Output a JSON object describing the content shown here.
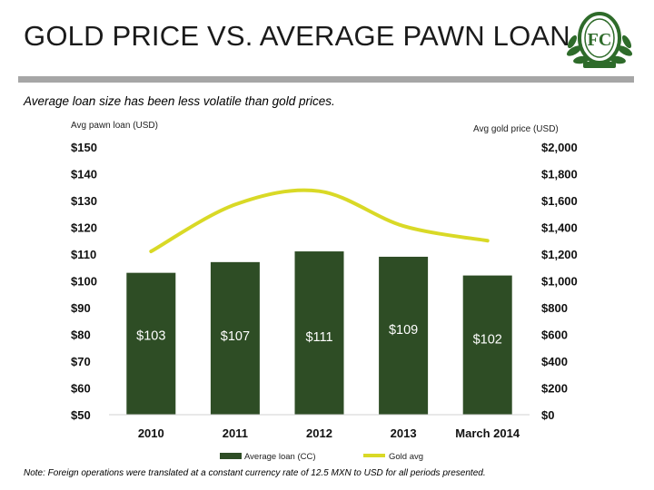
{
  "slide": {
    "title": "GOLD PRICE VS. AVERAGE PAWN LOAN",
    "subtitle": "Average loan size has been less volatile than gold prices.",
    "footnote": "Note: Foreign operations were translated at a constant currency rate of 12.5 MXN to USD for all periods presented.",
    "logo_icon": "fc-crest-logo-icon",
    "logo_letters": "FC"
  },
  "chart_data": {
    "type": "bar",
    "categories": [
      "2010",
      "2011",
      "2012",
      "2013",
      "March 2014"
    ],
    "series": [
      {
        "name": "Average loan (CC)",
        "kind": "bar",
        "axis": "left",
        "values": [
          103,
          107,
          111,
          109,
          102
        ],
        "labels": [
          "$103",
          "$107",
          "$111",
          "$109",
          "$102"
        ],
        "color": "#2e4d25"
      },
      {
        "name": "Gold avg",
        "kind": "line",
        "axis": "right",
        "values": [
          1220,
          1570,
          1670,
          1410,
          1300
        ],
        "color": "#d9d926"
      }
    ],
    "ylabel_left": "Avg pawn loan (USD)",
    "ylabel_right": "Avg gold price (USD)",
    "ylim_left": [
      50,
      150
    ],
    "ylim_right": [
      0,
      2000
    ],
    "yticks_left": [
      "$50",
      "$60",
      "$70",
      "$80",
      "$90",
      "$100",
      "$110",
      "$120",
      "$130",
      "$140",
      "$150"
    ],
    "yticks_right": [
      "$0",
      "$200",
      "$400",
      "$600",
      "$800",
      "$1,000",
      "$1,200",
      "$1,400",
      "$1,600",
      "$1,800",
      "$2,000"
    ],
    "grid": false,
    "legend_position": "bottom"
  }
}
